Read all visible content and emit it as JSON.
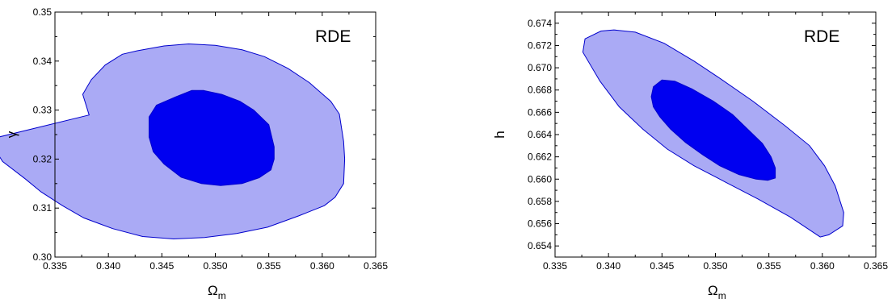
{
  "chart_data": [
    {
      "type": "contour",
      "annotation": "RDE",
      "xlabel": "Ω",
      "xlabel_sub": "m",
      "ylabel": "γ",
      "xlim": [
        0.335,
        0.365
      ],
      "ylim": [
        0.3,
        0.35
      ],
      "xticks": [
        "0.335",
        "0.340",
        "0.345",
        "0.350",
        "0.355",
        "0.360",
        "0.365"
      ],
      "yticks": [
        "0.30",
        "0.31",
        "0.32",
        "0.33",
        "0.34",
        "0.35"
      ],
      "colors": {
        "outer_fill": "#aaaaf5",
        "inner_fill": "#0000f0",
        "stroke": "#0000cc"
      },
      "regions": [
        {
          "name": "outer",
          "points": [
            [
              0.3376,
              0.3332
            ],
            [
              0.3384,
              0.3362
            ],
            [
              0.3397,
              0.3392
            ],
            [
              0.3413,
              0.3414
            ],
            [
              0.3427,
              0.3421
            ],
            [
              0.3452,
              0.3431
            ],
            [
              0.3475,
              0.3435
            ],
            [
              0.35,
              0.3432
            ],
            [
              0.3525,
              0.3423
            ],
            [
              0.3546,
              0.3409
            ],
            [
              0.3568,
              0.3385
            ],
            [
              0.3588,
              0.3356
            ],
            [
              0.3608,
              0.3318
            ],
            [
              0.3616,
              0.3292
            ],
            [
              0.362,
              0.3236
            ],
            [
              0.3621,
              0.32
            ],
            [
              0.362,
              0.315
            ],
            [
              0.3612,
              0.3122
            ],
            [
              0.3602,
              0.3105
            ],
            [
              0.3578,
              0.3084
            ],
            [
              0.3549,
              0.3061
            ],
            [
              0.352,
              0.3048
            ],
            [
              0.349,
              0.304
            ],
            [
              0.3461,
              0.3037
            ],
            [
              0.3432,
              0.3042
            ],
            [
              0.3404,
              0.3058
            ],
            [
              0.3377,
              0.308
            ],
            [
              0.3357,
              0.3105
            ],
            [
              0.3337,
              0.3133
            ],
            [
              0.3322,
              0.316
            ],
            [
              0.3301,
              0.3195
            ],
            [
              0.3288,
              0.324
            ],
            [
              0.3382,
              0.329
            ]
          ]
        },
        {
          "name": "inner",
          "points": [
            [
              0.3438,
              0.3286
            ],
            [
              0.3445,
              0.331
            ],
            [
              0.3463,
              0.3327
            ],
            [
              0.3478,
              0.334
            ],
            [
              0.3489,
              0.334
            ],
            [
              0.3506,
              0.3332
            ],
            [
              0.3523,
              0.3318
            ],
            [
              0.3536,
              0.33
            ],
            [
              0.355,
              0.327
            ],
            [
              0.3555,
              0.3225
            ],
            [
              0.3555,
              0.32
            ],
            [
              0.3552,
              0.3178
            ],
            [
              0.3541,
              0.3162
            ],
            [
              0.3525,
              0.315
            ],
            [
              0.3505,
              0.3146
            ],
            [
              0.3487,
              0.315
            ],
            [
              0.3468,
              0.3163
            ],
            [
              0.3452,
              0.319
            ],
            [
              0.3442,
              0.3215
            ],
            [
              0.3438,
              0.3245
            ]
          ]
        }
      ]
    },
    {
      "type": "contour",
      "annotation": "RDE",
      "xlabel": "Ω",
      "xlabel_sub": "m",
      "ylabel": "h",
      "xlim": [
        0.335,
        0.365
      ],
      "ylim": [
        0.653,
        0.675
      ],
      "xticks": [
        "0.335",
        "0.340",
        "0.345",
        "0.350",
        "0.355",
        "0.360",
        "0.365"
      ],
      "yticks": [
        "0.654",
        "0.656",
        "0.658",
        "0.660",
        "0.662",
        "0.664",
        "0.666",
        "0.668",
        "0.670",
        "0.672",
        "0.674"
      ],
      "colors": {
        "outer_fill": "#aaaaf5",
        "inner_fill": "#0000f0",
        "stroke": "#0000cc"
      },
      "regions": [
        {
          "name": "outer",
          "points": [
            [
              0.3376,
              0.6714
            ],
            [
              0.3378,
              0.6726
            ],
            [
              0.3393,
              0.6733
            ],
            [
              0.3405,
              0.6734
            ],
            [
              0.3425,
              0.6732
            ],
            [
              0.3452,
              0.6722
            ],
            [
              0.348,
              0.6706
            ],
            [
              0.3505,
              0.669
            ],
            [
              0.3535,
              0.667
            ],
            [
              0.3565,
              0.6648
            ],
            [
              0.3588,
              0.663
            ],
            [
              0.3602,
              0.6612
            ],
            [
              0.3612,
              0.6594
            ],
            [
              0.362,
              0.657
            ],
            [
              0.3619,
              0.6558
            ],
            [
              0.3606,
              0.655
            ],
            [
              0.3598,
              0.6548
            ],
            [
              0.357,
              0.6566
            ],
            [
              0.354,
              0.6582
            ],
            [
              0.351,
              0.6597
            ],
            [
              0.348,
              0.6612
            ],
            [
              0.3455,
              0.6627
            ],
            [
              0.3432,
              0.6645
            ],
            [
              0.341,
              0.6665
            ],
            [
              0.3392,
              0.6688
            ]
          ]
        },
        {
          "name": "inner",
          "points": [
            [
              0.344,
              0.6674
            ],
            [
              0.3442,
              0.6683
            ],
            [
              0.345,
              0.6689
            ],
            [
              0.3462,
              0.6688
            ],
            [
              0.3478,
              0.6681
            ],
            [
              0.3498,
              0.667
            ],
            [
              0.3516,
              0.6658
            ],
            [
              0.353,
              0.6645
            ],
            [
              0.3544,
              0.6632
            ],
            [
              0.3552,
              0.662
            ],
            [
              0.3556,
              0.661
            ],
            [
              0.3556,
              0.6601
            ],
            [
              0.3549,
              0.6599
            ],
            [
              0.3538,
              0.66
            ],
            [
              0.3522,
              0.6604
            ],
            [
              0.3504,
              0.6612
            ],
            [
              0.3488,
              0.6622
            ],
            [
              0.3472,
              0.6633
            ],
            [
              0.3458,
              0.6645
            ],
            [
              0.3448,
              0.6656
            ],
            [
              0.3442,
              0.6665
            ]
          ]
        }
      ]
    }
  ]
}
